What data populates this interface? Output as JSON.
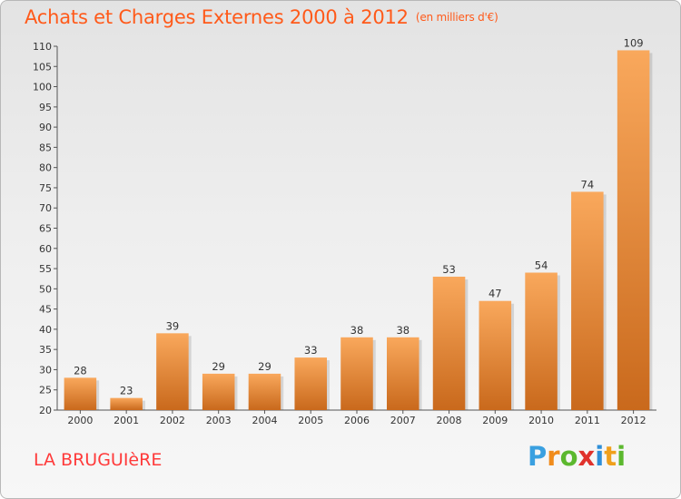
{
  "header": {
    "title": "Achats et Charges Externes 2000 à 2012",
    "subtitle": "(en milliers d'€)"
  },
  "footer": {
    "location": "LA BRUGUIèRE",
    "logo": {
      "letters": [
        "P",
        "r",
        "o",
        "x",
        "i",
        "t",
        "i"
      ],
      "colors": [
        "#3aa0e0",
        "#f08c1c",
        "#5cb82e",
        "#e0322c",
        "#2e8fd8",
        "#f0a01c",
        "#5cb82e"
      ]
    }
  },
  "colors": {
    "bar_top": "#f9a85c",
    "bar_bottom": "#c9691c",
    "title": "#ff5a1a",
    "location": "#ff3a3a"
  },
  "chart_data": {
    "type": "bar",
    "title": "Achats et Charges Externes 2000 à 2012",
    "subtitle": "(en milliers d'€)",
    "xlabel": "",
    "ylabel": "",
    "categories": [
      "2000",
      "2001",
      "2002",
      "2003",
      "2004",
      "2005",
      "2006",
      "2007",
      "2008",
      "2009",
      "2010",
      "2011",
      "2012"
    ],
    "values": [
      28,
      23,
      39,
      29,
      29,
      33,
      38,
      38,
      53,
      47,
      54,
      74,
      109
    ],
    "ylim": [
      20,
      110
    ],
    "ytick_step": 5,
    "yticks": [
      "20",
      "25",
      "30",
      "35",
      "40",
      "45",
      "50",
      "55",
      "60",
      "65",
      "70",
      "75",
      "80",
      "85",
      "90",
      "95",
      "100",
      "105",
      "110"
    ],
    "grid": false,
    "legend": "none"
  }
}
